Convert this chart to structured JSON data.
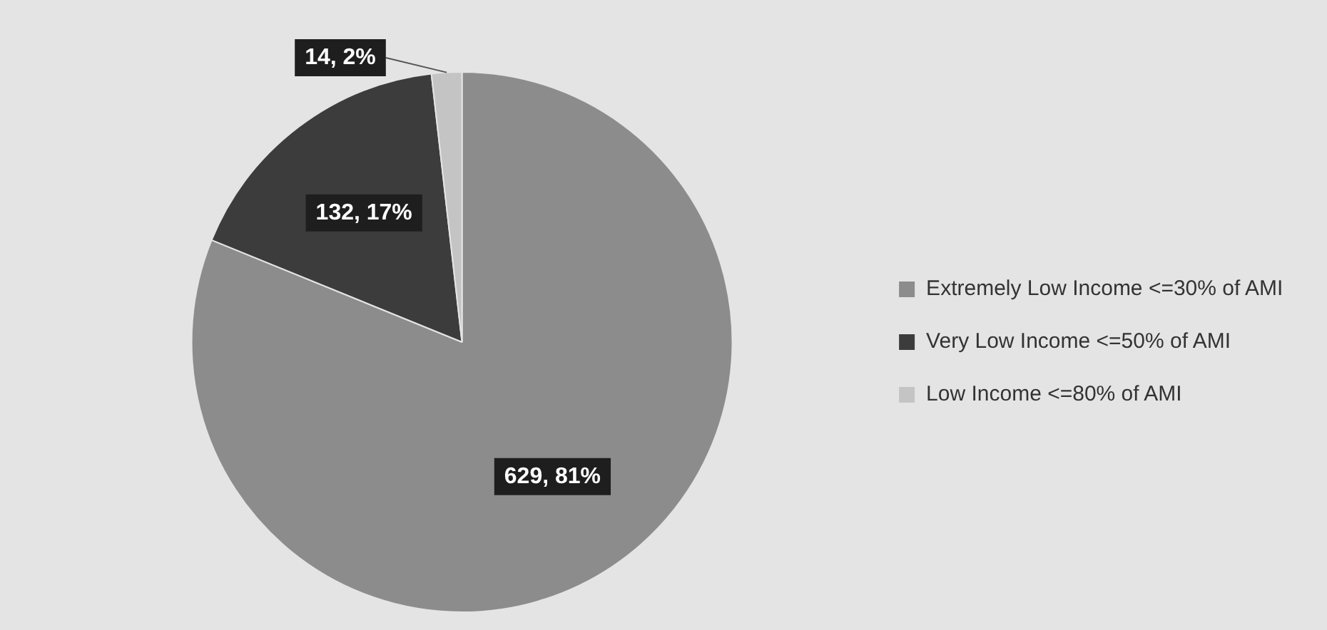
{
  "chart_data": {
    "type": "pie",
    "categories": [
      "Extremely Low Income <=30% of AMI",
      "Very Low Income <=50% of AMI",
      "Low Income <=80% of AMI"
    ],
    "values": [
      629,
      132,
      14
    ],
    "colors": [
      "#8c8c8c",
      "#3c3c3c",
      "#c4c4c4"
    ],
    "value_labels": [
      "629, 81%",
      "132, 17%",
      "14, 2%"
    ],
    "legend": "right"
  }
}
